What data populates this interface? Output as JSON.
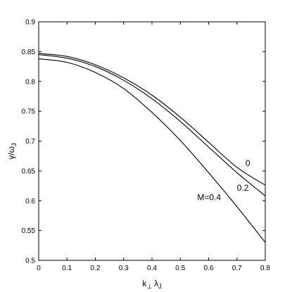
{
  "chart_data": {
    "type": "line",
    "title": "",
    "xlabel": "k⊥λJ",
    "ylabel": "γ/ωJ",
    "xlabel_parts": {
      "main": "k",
      "sub1": "⊥",
      "mid": "λ",
      "sub2": "J"
    },
    "ylabel_parts": {
      "main": "γ/ω",
      "sub": "J"
    },
    "xlim": [
      0,
      0.8
    ],
    "ylim": [
      0.5,
      0.9
    ],
    "xticks": [
      0,
      0.1,
      0.2,
      0.3,
      0.4,
      0.5,
      0.6,
      0.7,
      0.8
    ],
    "yticks": [
      0.5,
      0.55,
      0.6,
      0.65,
      0.7,
      0.75,
      0.8,
      0.85,
      0.9
    ],
    "xtick_labels": [
      "0",
      "0.1",
      "0.2",
      "0.3",
      "0.4",
      "0.5",
      "0.6",
      "0.7",
      "0.8"
    ],
    "ytick_labels": [
      "0.5",
      "0.55",
      "0.6",
      "0.65",
      "0.7",
      "0.75",
      "0.8",
      "0.85",
      "0.9"
    ],
    "grid": false,
    "legend": "none",
    "series": [
      {
        "label": "0",
        "label_at": [
          0.73,
          0.658
        ],
        "x": [
          0,
          0.1,
          0.2,
          0.3,
          0.4,
          0.5,
          0.6,
          0.7,
          0.8
        ],
        "y": [
          0.847,
          0.842,
          0.828,
          0.806,
          0.777,
          0.74,
          0.698,
          0.656,
          0.626
        ]
      },
      {
        "label": "0.2",
        "label_at": [
          0.7,
          0.617
        ],
        "x": [
          0,
          0.1,
          0.2,
          0.3,
          0.4,
          0.5,
          0.6,
          0.7,
          0.8
        ],
        "y": [
          0.845,
          0.839,
          0.825,
          0.802,
          0.771,
          0.733,
          0.69,
          0.647,
          0.608
        ]
      },
      {
        "label": "M=0.4",
        "label_at": [
          0.56,
          0.601
        ],
        "x": [
          0,
          0.1,
          0.2,
          0.3,
          0.4,
          0.5,
          0.6,
          0.7,
          0.8
        ],
        "y": [
          0.838,
          0.832,
          0.815,
          0.788,
          0.748,
          0.701,
          0.647,
          0.59,
          0.53
        ]
      }
    ]
  }
}
